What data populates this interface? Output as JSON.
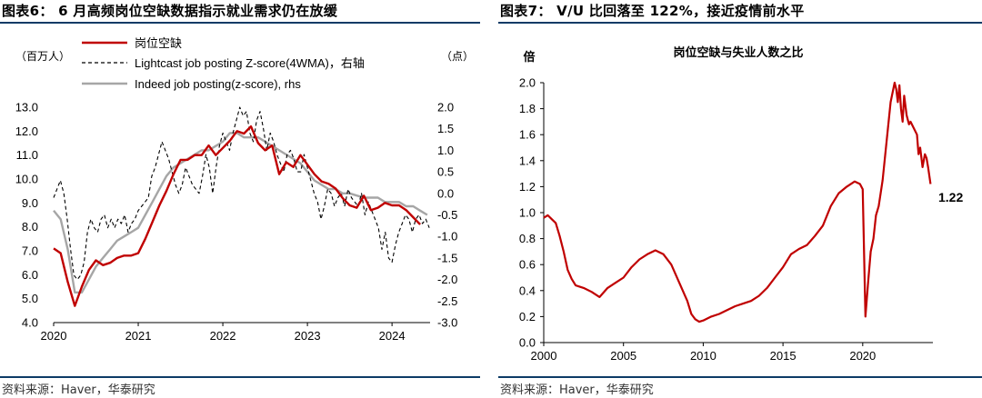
{
  "left": {
    "title": "图表6：  6 月高频岗位空缺数据指示就业需求仍在放缓",
    "source": "资料来源：Haver，华泰研究",
    "chart_data": {
      "type": "line",
      "left_unit": "（百万人）",
      "right_unit": "（点）",
      "x_ticks": [
        "2020",
        "2021",
        "2022",
        "2023",
        "2024"
      ],
      "xlim": [
        2020.0,
        2024.45
      ],
      "left_ylim": [
        4.0,
        13.0
      ],
      "left_ticks": [
        "4.0",
        "5.0",
        "6.0",
        "7.0",
        "8.0",
        "9.0",
        "10.0",
        "11.0",
        "12.0",
        "13.0"
      ],
      "right_ylim": [
        -3.0,
        2.0
      ],
      "right_ticks": [
        "-3.0",
        "-2.5",
        "-2.0",
        "-1.5",
        "-1.0",
        "-0.5",
        "0.0",
        "0.5",
        "1.0",
        "1.5",
        "2.0"
      ],
      "legend": [
        "岗位空缺",
        "Lightcast job posting Z-score(4WMA)，右轴",
        "Indeed job posting(z-score), rhs"
      ],
      "series": [
        {
          "name": "岗位空缺",
          "axis": "left",
          "color": "#c00000",
          "style": "solid",
          "x": [
            2020.0,
            2020.083,
            2020.167,
            2020.25,
            2020.333,
            2020.417,
            2020.5,
            2020.583,
            2020.667,
            2020.75,
            2020.833,
            2020.917,
            2021.0,
            2021.083,
            2021.167,
            2021.25,
            2021.333,
            2021.417,
            2021.5,
            2021.583,
            2021.667,
            2021.75,
            2021.833,
            2021.917,
            2022.0,
            2022.083,
            2022.167,
            2022.25,
            2022.333,
            2022.417,
            2022.5,
            2022.583,
            2022.667,
            2022.75,
            2022.833,
            2022.917,
            2023.0,
            2023.083,
            2023.167,
            2023.25,
            2023.333,
            2023.417,
            2023.5,
            2023.583,
            2023.667,
            2023.75,
            2023.833,
            2023.917,
            2024.0,
            2024.083,
            2024.167,
            2024.25,
            2024.333
          ],
          "y": [
            7.1,
            6.9,
            5.7,
            4.7,
            5.5,
            6.2,
            6.6,
            6.4,
            6.5,
            6.7,
            6.8,
            6.8,
            6.9,
            7.5,
            8.2,
            8.9,
            9.5,
            10.2,
            10.8,
            10.8,
            11.0,
            11.0,
            11.4,
            11.0,
            11.3,
            11.6,
            12.0,
            11.9,
            12.2,
            11.5,
            11.2,
            11.4,
            10.2,
            10.7,
            10.5,
            11.0,
            10.6,
            10.2,
            9.9,
            9.8,
            9.6,
            9.2,
            8.9,
            8.8,
            9.3,
            8.7,
            8.8,
            9.0,
            8.9,
            8.9,
            8.7,
            8.4,
            8.1
          ]
        },
        {
          "name": "Lightcast job posting Z-score(4WMA)",
          "axis": "right",
          "color": "#000000",
          "style": "dashed",
          "x": [
            2020.0,
            2020.04,
            2020.08,
            2020.12,
            2020.16,
            2020.2,
            2020.24,
            2020.28,
            2020.32,
            2020.36,
            2020.4,
            2020.44,
            2020.48,
            2020.52,
            2020.56,
            2020.6,
            2020.64,
            2020.68,
            2020.72,
            2020.76,
            2020.8,
            2020.84,
            2020.88,
            2020.92,
            2020.96,
            2021.0,
            2021.04,
            2021.08,
            2021.12,
            2021.16,
            2021.2,
            2021.24,
            2021.28,
            2021.32,
            2021.36,
            2021.4,
            2021.44,
            2021.48,
            2021.52,
            2021.56,
            2021.6,
            2021.64,
            2021.68,
            2021.72,
            2021.76,
            2021.8,
            2021.84,
            2021.88,
            2021.92,
            2021.96,
            2022.0,
            2022.04,
            2022.08,
            2022.12,
            2022.16,
            2022.2,
            2022.24,
            2022.28,
            2022.32,
            2022.36,
            2022.4,
            2022.44,
            2022.48,
            2022.52,
            2022.56,
            2022.6,
            2022.64,
            2022.68,
            2022.72,
            2022.76,
            2022.8,
            2022.84,
            2022.88,
            2022.92,
            2022.96,
            2023.0,
            2023.04,
            2023.08,
            2023.12,
            2023.16,
            2023.2,
            2023.24,
            2023.28,
            2023.32,
            2023.36,
            2023.4,
            2023.44,
            2023.48,
            2023.52,
            2023.56,
            2023.6,
            2023.64,
            2023.68,
            2023.72,
            2023.76,
            2023.8,
            2023.84,
            2023.88,
            2023.92,
            2023.96,
            2024.0,
            2024.04,
            2024.08,
            2024.12,
            2024.16,
            2024.2,
            2024.24,
            2024.28,
            2024.32,
            2024.36,
            2024.4,
            2024.44
          ],
          "y": [
            -0.1,
            0.1,
            0.3,
            0.0,
            -0.6,
            -1.3,
            -1.9,
            -2.0,
            -1.9,
            -1.6,
            -0.9,
            -0.6,
            -0.8,
            -0.9,
            -0.6,
            -0.5,
            -0.8,
            -0.6,
            -0.8,
            -0.6,
            -0.7,
            -0.5,
            -0.9,
            -0.7,
            -0.6,
            -0.4,
            -0.3,
            -0.2,
            -0.1,
            0.4,
            0.6,
            0.9,
            1.2,
            1.0,
            0.8,
            0.5,
            0.2,
            0.0,
            0.2,
            0.6,
            0.4,
            0.2,
            0.1,
            0.0,
            0.4,
            0.9,
            0.6,
            0.0,
            0.6,
            1.1,
            1.4,
            1.2,
            1.0,
            1.4,
            1.7,
            2.0,
            1.8,
            1.9,
            1.4,
            1.2,
            1.7,
            1.9,
            1.5,
            1.0,
            1.4,
            1.2,
            0.9,
            0.7,
            0.5,
            0.9,
            1.0,
            0.8,
            0.5,
            0.5,
            0.9,
            0.6,
            0.3,
            0.0,
            -0.2,
            -0.6,
            -0.3,
            0.1,
            0.0,
            -0.3,
            -0.1,
            0.0,
            -0.3,
            0.1,
            -0.1,
            -0.2,
            -0.3,
            0.0,
            -0.5,
            -0.2,
            -0.4,
            -0.6,
            -0.8,
            -1.3,
            -0.9,
            -1.5,
            -1.6,
            -1.2,
            -0.9,
            -0.7,
            -0.5,
            -0.6,
            -0.9,
            -0.6,
            -0.5,
            -0.7,
            -0.6,
            -0.8
          ]
        },
        {
          "name": "Indeed job posting(z-score), rhs",
          "axis": "right",
          "color": "#a6a6a6",
          "style": "solid",
          "x": [
            2020.0,
            2020.083,
            2020.167,
            2020.25,
            2020.333,
            2020.417,
            2020.5,
            2020.583,
            2020.667,
            2020.75,
            2020.833,
            2020.917,
            2021.0,
            2021.083,
            2021.167,
            2021.25,
            2021.333,
            2021.417,
            2021.5,
            2021.583,
            2021.667,
            2021.75,
            2021.833,
            2021.917,
            2022.0,
            2022.083,
            2022.167,
            2022.25,
            2022.333,
            2022.417,
            2022.5,
            2022.583,
            2022.667,
            2022.75,
            2022.833,
            2022.917,
            2023.0,
            2023.083,
            2023.167,
            2023.25,
            2023.333,
            2023.417,
            2023.5,
            2023.583,
            2023.667,
            2023.75,
            2023.833,
            2023.917,
            2024.0,
            2024.083,
            2024.167,
            2024.25,
            2024.333,
            2024.417
          ],
          "y": [
            -0.4,
            -0.6,
            -1.3,
            -2.3,
            -2.3,
            -2.0,
            -1.7,
            -1.5,
            -1.3,
            -1.1,
            -1.0,
            -0.9,
            -0.8,
            -0.5,
            -0.2,
            0.1,
            0.4,
            0.6,
            0.7,
            0.8,
            0.9,
            1.0,
            1.0,
            1.1,
            1.2,
            1.4,
            1.4,
            1.3,
            1.3,
            1.3,
            1.2,
            1.1,
            1.0,
            0.9,
            0.8,
            0.7,
            0.5,
            0.3,
            0.2,
            0.1,
            0.1,
            0.0,
            0.0,
            -0.05,
            -0.1,
            -0.1,
            -0.1,
            -0.2,
            -0.2,
            -0.2,
            -0.3,
            -0.3,
            -0.4,
            -0.5
          ]
        }
      ]
    }
  },
  "right": {
    "title": "图表7：  V/U 比回落至 122%，接近疫情前水平",
    "source": "资料来源：Haver，华泰研究",
    "chart_data": {
      "type": "line",
      "title": "岗位空缺与失业人数之比",
      "ylabel": "倍",
      "xlim": [
        2000.0,
        2024.4
      ],
      "ylim": [
        0.0,
        2.0
      ],
      "x_ticks": [
        "2000",
        "2005",
        "2010",
        "2015",
        "2020"
      ],
      "y_ticks": [
        "0.0",
        "0.2",
        "0.4",
        "0.6",
        "0.8",
        "1.0",
        "1.2",
        "1.4",
        "1.6",
        "1.8",
        "2.0"
      ],
      "end_label": "1.22",
      "series": [
        {
          "name": "V/U",
          "color": "#c00000",
          "x": [
            2000.0,
            2000.25,
            2000.5,
            2000.75,
            2001.0,
            2001.25,
            2001.5,
            2001.75,
            2002.0,
            2002.5,
            2003.0,
            2003.5,
            2004.0,
            2004.5,
            2005.0,
            2005.5,
            2006.0,
            2006.5,
            2007.0,
            2007.5,
            2008.0,
            2008.5,
            2009.0,
            2009.25,
            2009.5,
            2009.75,
            2010.0,
            2010.5,
            2011.0,
            2011.5,
            2012.0,
            2012.5,
            2013.0,
            2013.5,
            2014.0,
            2014.5,
            2015.0,
            2015.5,
            2016.0,
            2016.5,
            2017.0,
            2017.5,
            2018.0,
            2018.5,
            2019.0,
            2019.5,
            2019.83,
            2020.0,
            2020.17,
            2020.33,
            2020.5,
            2020.67,
            2020.83,
            2021.0,
            2021.25,
            2021.5,
            2021.75,
            2022.0,
            2022.1,
            2022.2,
            2022.3,
            2022.4,
            2022.5,
            2022.6,
            2022.75,
            2022.9,
            2023.0,
            2023.2,
            2023.4,
            2023.5,
            2023.6,
            2023.75,
            2023.9,
            2024.0,
            2024.1,
            2024.25
          ],
          "y": [
            0.96,
            0.98,
            0.95,
            0.92,
            0.82,
            0.7,
            0.56,
            0.49,
            0.44,
            0.42,
            0.39,
            0.35,
            0.42,
            0.46,
            0.5,
            0.58,
            0.64,
            0.68,
            0.71,
            0.68,
            0.6,
            0.46,
            0.32,
            0.22,
            0.18,
            0.16,
            0.17,
            0.2,
            0.22,
            0.25,
            0.28,
            0.3,
            0.32,
            0.36,
            0.42,
            0.5,
            0.58,
            0.68,
            0.72,
            0.75,
            0.82,
            0.9,
            1.05,
            1.15,
            1.2,
            1.24,
            1.22,
            1.18,
            0.2,
            0.45,
            0.7,
            0.8,
            0.98,
            1.05,
            1.25,
            1.55,
            1.85,
            2.0,
            1.95,
            1.85,
            1.98,
            1.8,
            1.7,
            1.9,
            1.75,
            1.68,
            1.7,
            1.65,
            1.6,
            1.45,
            1.5,
            1.35,
            1.45,
            1.42,
            1.35,
            1.22
          ]
        }
      ]
    }
  }
}
